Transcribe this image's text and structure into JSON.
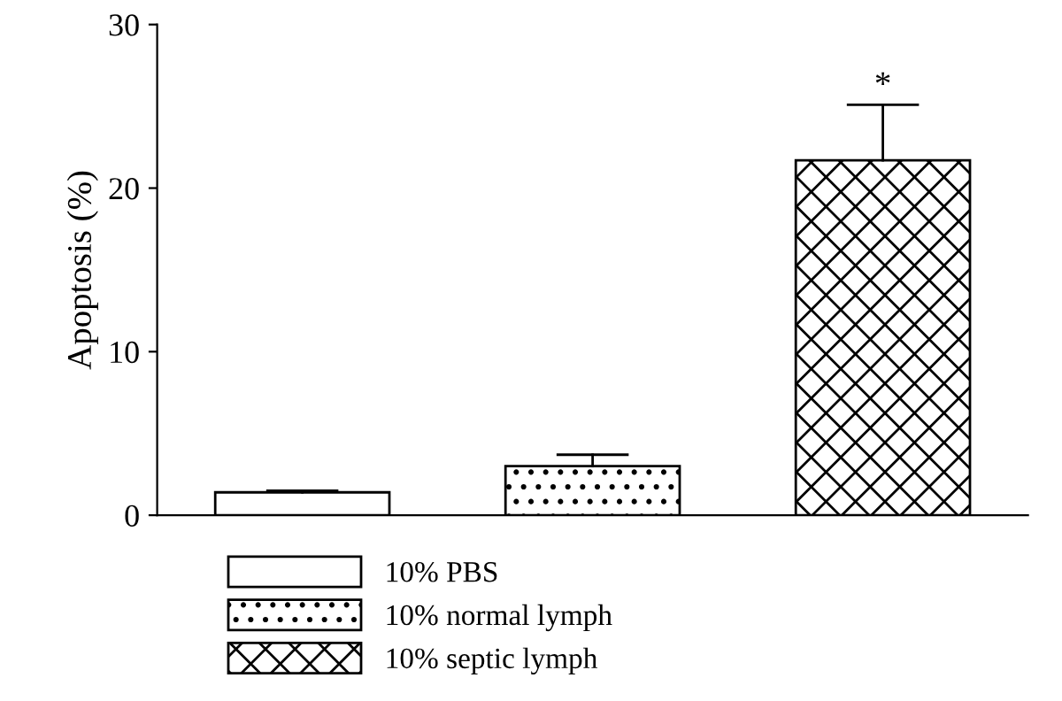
{
  "chart_data": {
    "type": "bar",
    "ylabel": "Apoptosis (%)",
    "categories": [
      null,
      null,
      null
    ],
    "series": [
      {
        "name": "10% PBS",
        "color": "#ffffff",
        "values": [
          1.4,
          null,
          null
        ],
        "errors": [
          [
            1.4,
            1.5
          ],
          null,
          null
        ]
      },
      {
        "name": "10% normal lymph",
        "color": "#000000",
        "values": [
          null,
          3.0,
          null
        ],
        "errors": [
          null,
          [
            3.0,
            3.7
          ],
          null
        ]
      },
      {
        "name": "10% septic lymph",
        "color": "#000000",
        "values": [
          null,
          null,
          21.7
        ],
        "errors": [
          null,
          null,
          [
            21.7,
            25.1
          ]
        ]
      }
    ],
    "ylim": [
      0,
      30
    ],
    "yticks": [
      0,
      10,
      20,
      30
    ],
    "tick_labels": "y",
    "legend": "bottom",
    "grid": false,
    "annotations": [
      "*"
    ]
  }
}
